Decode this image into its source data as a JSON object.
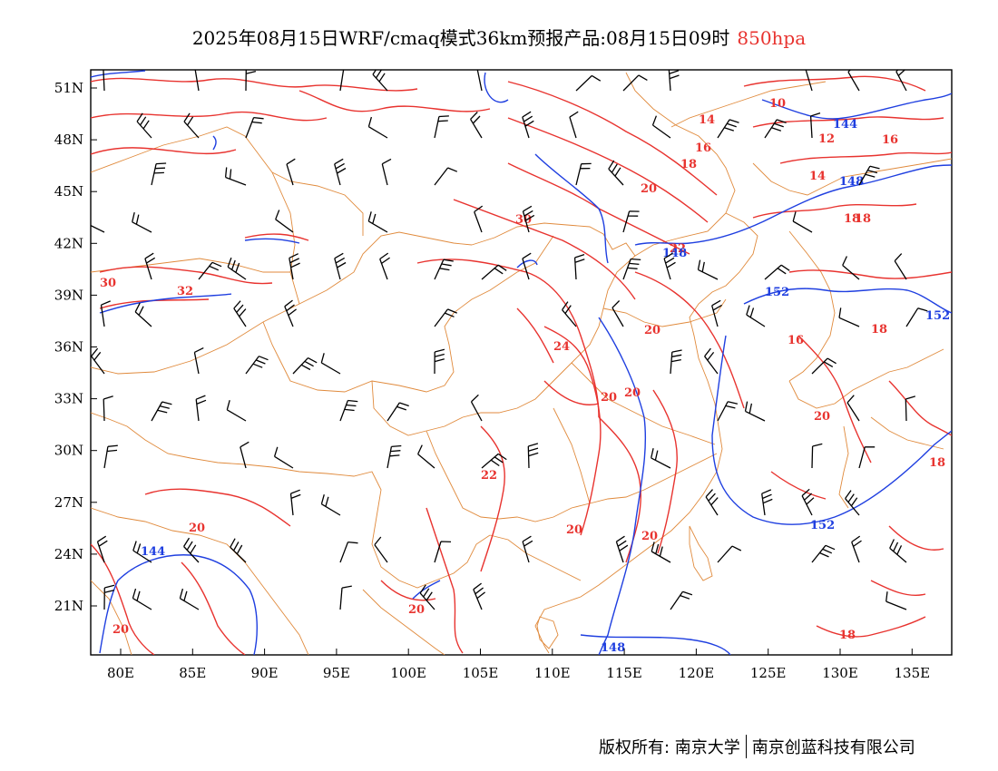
{
  "header": {
    "title": "2025年08月15日WRF/cmaq模式36km预报产品:08月15日09时",
    "level": "850hpa",
    "level_color": "#e8332f"
  },
  "map": {
    "region": "China and surroundings",
    "lon_labels": [
      "80E",
      "85E",
      "90E",
      "95E",
      "100E",
      "105E",
      "110E",
      "115E",
      "120E",
      "125E",
      "130E",
      "135E"
    ],
    "lat_labels": [
      "51N",
      "48N",
      "45N",
      "42N",
      "39N",
      "36N",
      "33N",
      "30N",
      "27N",
      "24N",
      "21N"
    ],
    "layers": {
      "boundaries_color": "#e08a3c",
      "temperature_contour_color": "#e8332f",
      "geopotential_contour_color": "#1f3fe0",
      "wind_barb_color": "#000000"
    },
    "temperature_labels": [
      "10",
      "14",
      "12",
      "16",
      "16",
      "18",
      "14",
      "20",
      "30",
      "18",
      "18",
      "30",
      "32",
      "24",
      "20",
      "18",
      "20",
      "20",
      "20",
      "16",
      "22",
      "20",
      "22",
      "20",
      "20",
      "18",
      "20",
      "18"
    ],
    "geopotential_labels": [
      "144",
      "148",
      "152",
      "152",
      "152",
      "148",
      "144",
      "148"
    ]
  },
  "footer": {
    "copyright_left": "版权所有: 南京大学",
    "copyright_right": "南京创蓝科技有限公司"
  }
}
